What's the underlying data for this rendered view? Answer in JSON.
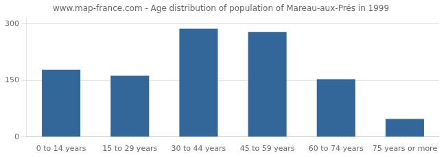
{
  "chart_data": {
    "type": "bar",
    "title": "www.map-france.com - Age distribution of population of Mareau-aux-Prés in 1999",
    "categories": [
      "0 to 14 years",
      "15 to 29 years",
      "30 to 44 years",
      "45 to 59 years",
      "60 to 74 years",
      "75 years or more"
    ],
    "values": [
      178,
      162,
      287,
      278,
      153,
      48
    ],
    "color": "#336699",
    "ylim": [
      0,
      315
    ],
    "yticks": [
      0,
      150,
      300
    ],
    "grid": true
  }
}
